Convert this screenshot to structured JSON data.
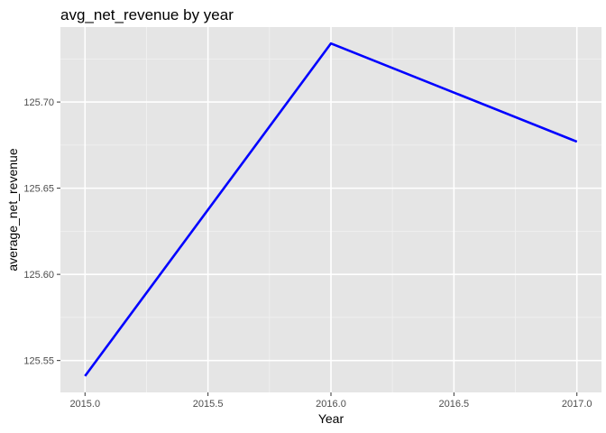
{
  "chart_data": {
    "type": "line",
    "title": "avg_net_revenue by year",
    "xlabel": "Year",
    "ylabel": "average_net_revenue",
    "x": [
      2015,
      2016,
      2017
    ],
    "series": [
      {
        "values": [
          125.541,
          125.734,
          125.677
        ],
        "color": "#0000ff"
      }
    ],
    "xlim": [
      2014.9,
      2017.1
    ],
    "ylim": [
      125.5315,
      125.7435
    ],
    "x_ticks": [
      2015.0,
      2015.5,
      2016.0,
      2016.5,
      2017.0
    ],
    "x_tick_labels": [
      "2015.0",
      "2015.5",
      "2016.0",
      "2016.5",
      "2017.0"
    ],
    "y_ticks": [
      125.55,
      125.6,
      125.65,
      125.7
    ],
    "y_tick_labels": [
      "125.55",
      "125.60",
      "125.65",
      "125.70"
    ],
    "grid": true,
    "legend": "none",
    "colors": {
      "panel_background": "#e5e5e5",
      "grid_major": "#ffffff",
      "grid_minor": "#f2f2f2",
      "tick": "#333333"
    }
  }
}
